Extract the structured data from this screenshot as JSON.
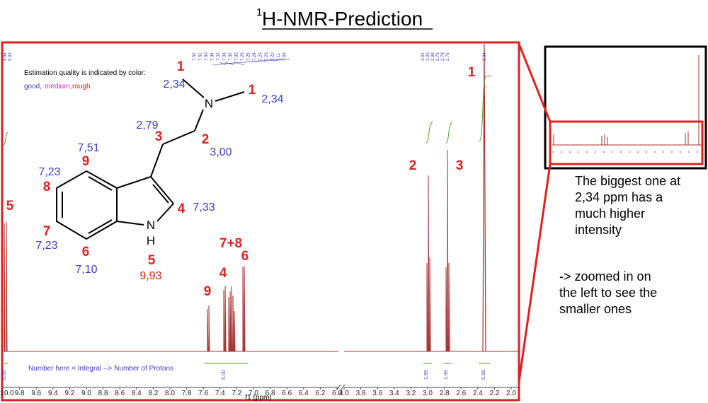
{
  "title": {
    "superscript": "1",
    "main": "H-NMR-Prediction"
  },
  "legend": {
    "heading": "Estimation quality is indicated by color:",
    "items": [
      "good,",
      "medium,",
      "rough"
    ]
  },
  "molecule": {
    "atoms": [
      "N",
      "N",
      "H"
    ],
    "assignments": [
      "1",
      "1",
      "3",
      "2",
      "9",
      "8",
      "4",
      "7",
      "6",
      "5"
    ],
    "shifts": [
      "2,34",
      "2,34",
      "2,79",
      "3,00",
      "7,51",
      "7,23",
      "7,33",
      "7,23",
      "7,10",
      "9,93"
    ]
  },
  "spectrum": {
    "peak_names": [
      "5",
      "9",
      "4",
      "7+8",
      "6",
      "2",
      "3",
      "1"
    ],
    "peak_labels_left": [
      "9.94",
      "9.93"
    ],
    "peak_labels_mid": [
      "7.52",
      "7.51",
      "7.50",
      "7.34",
      "7.33",
      "7.33",
      "7.32",
      "7.32",
      "7.26",
      "7.25",
      "7.24",
      "7.23",
      "7.23",
      "7.22",
      "7.11",
      "7.09"
    ],
    "peak_labels_right": [
      "3.01",
      "3.00",
      "2.98",
      "2.79",
      "2.78",
      "2.76"
    ],
    "peak_label_main": "2.34",
    "ticks_left": [
      "10.0",
      "9.8",
      "9.6",
      "9.4",
      "9.2",
      "9.0",
      "8.8",
      "8.6",
      "8.4",
      "8.2",
      "8.0",
      "7.8",
      "7.6",
      "7.4",
      "7.2",
      "7.0",
      "6.8",
      "6.6",
      "6.4",
      "6.2",
      "6.0"
    ],
    "ticks_right": [
      "4.0",
      "3.8",
      "3.6",
      "3.4",
      "3.2",
      "3.0",
      "2.8",
      "2.6",
      "2.4",
      "2.2",
      "2.0"
    ],
    "x_axis_label": "f1 (ppm)",
    "integrals": [
      "0.99",
      "5.00",
      "1.99",
      "1.99",
      "5.99"
    ],
    "note": "Number here = Integral --> Number of Protons"
  },
  "inset": {
    "caption": [
      "The biggest one at",
      "2,34 ppm has a",
      "much higher",
      "intensity"
    ],
    "zoom_note": [
      "-> zoomed in on",
      "the left to see the",
      "smaller ones"
    ]
  }
}
